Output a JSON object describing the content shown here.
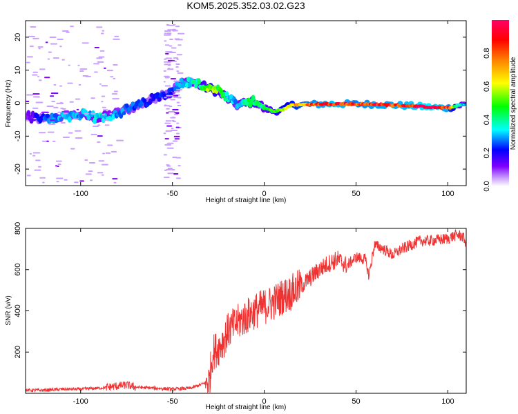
{
  "title": "KOM5.2025.352.03.02.G23",
  "chart_data": [
    {
      "type": "heatmap",
      "name": "spectrogram",
      "xlabel": "Height of straight line (km)",
      "ylabel": "Frequency (Hz)",
      "xlim": [
        -130,
        110
      ],
      "ylim": [
        -25,
        25
      ],
      "xticks": [
        -100,
        -50,
        0,
        50,
        100
      ],
      "yticks": [
        -20,
        -10,
        0,
        10,
        20
      ],
      "colorbar": {
        "label": "Normalized spectral amplitude",
        "range": [
          0,
          1
        ],
        "ticks": [
          "0.0",
          "0.2",
          "0.4",
          "0.6",
          "0.8"
        ],
        "tick_values": [
          0.0,
          0.2,
          0.4,
          0.6,
          0.8
        ],
        "colors": [
          "#ffffff",
          "#c9a0ff",
          "#8000ff",
          "#0000ff",
          "#00ffff",
          "#00ff00",
          "#ffff00",
          "#ff8000",
          "#ff0000",
          "#ff0066"
        ]
      },
      "ridge": {
        "x": [
          -130,
          -120,
          -110,
          -100,
          -90,
          -80,
          -70,
          -60,
          -50,
          -45,
          -40,
          -35,
          -30,
          -25,
          -20,
          -15,
          -10,
          -5,
          0,
          5,
          10,
          15,
          20,
          30,
          40,
          50,
          60,
          70,
          80,
          90,
          100,
          105,
          110
        ],
        "freq": [
          -4,
          -5,
          -4,
          -3.5,
          -4.5,
          -3,
          -1,
          1.5,
          4,
          6,
          6.5,
          5.5,
          4.5,
          3.5,
          1.5,
          -0.5,
          0,
          0.5,
          -1.5,
          -2.5,
          -2,
          -0.5,
          -0.5,
          -0.3,
          -0.2,
          -0.3,
          -0.3,
          -0.6,
          -0.8,
          -1.2,
          -1.5,
          -0.8,
          -0.3
        ],
        "amplitude": [
          0.1,
          0.25,
          0.3,
          0.3,
          0.35,
          0.3,
          0.25,
          0.2,
          0.25,
          0.3,
          0.35,
          0.4,
          0.55,
          0.5,
          0.35,
          0.3,
          0.4,
          0.45,
          0.4,
          0.5,
          0.6,
          0.65,
          0.75,
          0.85,
          0.9,
          0.8,
          0.85,
          0.85,
          0.9,
          0.95,
          0.85,
          0.4,
          0.3
        ]
      }
    },
    {
      "type": "line",
      "name": "snr",
      "xlabel": "Height of straight line (km)",
      "ylabel": "SNR (v/v)",
      "xlim": [
        -130,
        110
      ],
      "ylim": [
        0,
        800
      ],
      "xticks": [
        -100,
        -50,
        0,
        50,
        100
      ],
      "yticks": [
        200,
        400,
        600,
        800
      ],
      "color": "#ee3333",
      "series": [
        {
          "name": "SNR",
          "x": [
            -130,
            -120,
            -110,
            -100,
            -90,
            -80,
            -75,
            -70,
            -60,
            -50,
            -40,
            -35,
            -30,
            -28,
            -25,
            -22,
            -20,
            -15,
            -10,
            -5,
            0,
            5,
            10,
            15,
            20,
            25,
            30,
            35,
            40,
            45,
            50,
            55,
            57,
            60,
            65,
            70,
            75,
            80,
            85,
            90,
            95,
            100,
            105,
            108,
            110
          ],
          "y": [
            15,
            15,
            20,
            20,
            25,
            35,
            40,
            30,
            25,
            20,
            25,
            40,
            60,
            200,
            220,
            260,
            300,
            340,
            370,
            400,
            420,
            440,
            470,
            490,
            520,
            560,
            600,
            630,
            650,
            620,
            660,
            650,
            570,
            720,
            700,
            670,
            700,
            720,
            740,
            740,
            745,
            750,
            770,
            760,
            730
          ]
        }
      ]
    }
  ]
}
